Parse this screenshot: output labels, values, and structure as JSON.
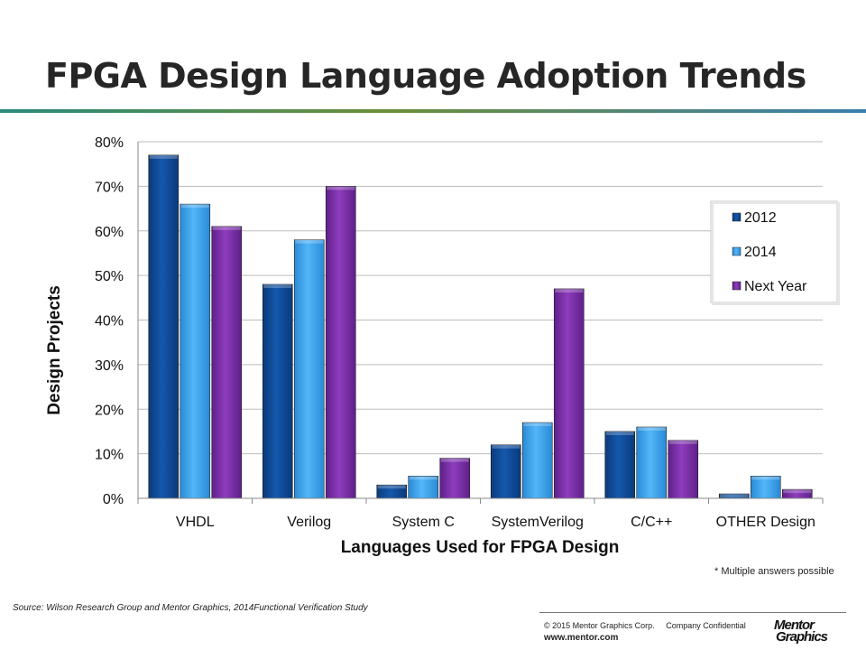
{
  "slide": {
    "title": "FPGA Design Language Adoption Trends",
    "footnote": "* Multiple answers possible",
    "source": "Source:  Wilson Research Group and Mentor Graphics, 2014Functional Verification Study",
    "copyright": "© 2015 Mentor Graphics Corp.     Company Confidential",
    "website": "www.mentor.com",
    "logo_line1": "Mentor",
    "logo_line2": "Graphics"
  },
  "chart_data": {
    "type": "bar",
    "title": "FPGA Design Language Adoption Trends",
    "xlabel": "Languages Used for FPGA Design",
    "ylabel": "Design Projects",
    "categories": [
      "VHDL",
      "Verilog",
      "System C",
      "SystemVerilog",
      "C/C++",
      "OTHER Design"
    ],
    "series": [
      {
        "name": "2012",
        "color": "#0d4a97",
        "values": [
          77,
          48,
          3,
          12,
          15,
          1
        ]
      },
      {
        "name": "2014",
        "color": "#3aa6ee",
        "values": [
          66,
          58,
          5,
          17,
          16,
          5
        ]
      },
      {
        "name": "Next Year",
        "color": "#7b2fa8",
        "values": [
          61,
          70,
          9,
          47,
          13,
          2
        ]
      }
    ],
    "ylim": [
      0,
      80
    ],
    "yticks": [
      "0%",
      "10%",
      "20%",
      "30%",
      "40%",
      "50%",
      "60%",
      "70%",
      "80%"
    ],
    "grid": true,
    "legend_position": "right"
  }
}
